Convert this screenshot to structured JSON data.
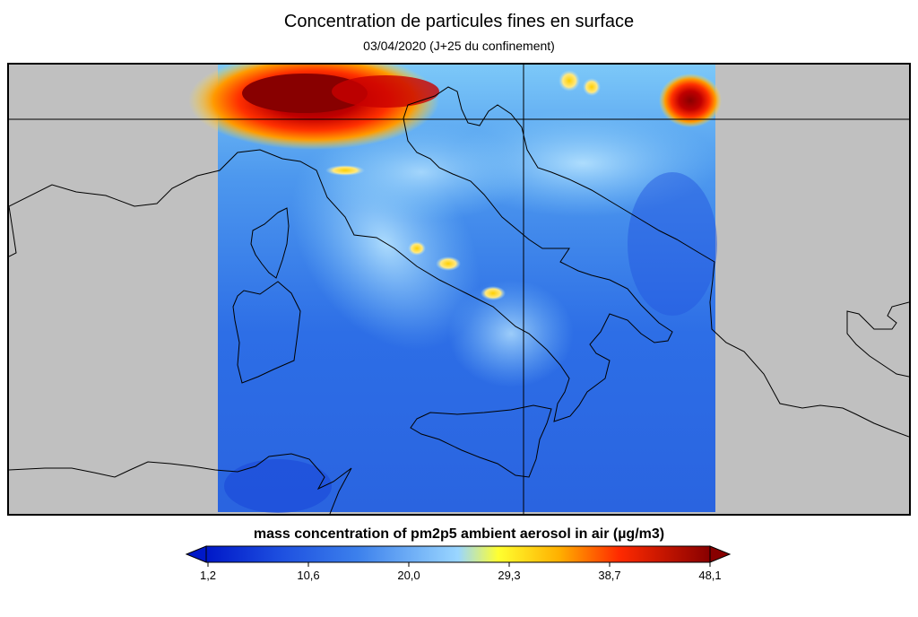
{
  "header": {
    "title": "Concentration de particules fines en surface",
    "subtitle": "03/04/2020 (J+25 du confinement)"
  },
  "colorbar": {
    "title": "mass concentration of pm2p5 ambient aerosol in air (µg/m3)",
    "ticks": [
      "1,2",
      "10,6",
      "20,0",
      "29,3",
      "38,7",
      "48,1"
    ],
    "colors": [
      "#0018c8",
      "#2a64e8",
      "#5aa8f0",
      "#a8dcff",
      "#ffff30",
      "#ff9000",
      "#ff1800",
      "#880000"
    ],
    "under_color": "#0018c8",
    "over_color": "#880000"
  },
  "map": {
    "region": "Italy",
    "background_color": "#c0c0c0"
  }
}
